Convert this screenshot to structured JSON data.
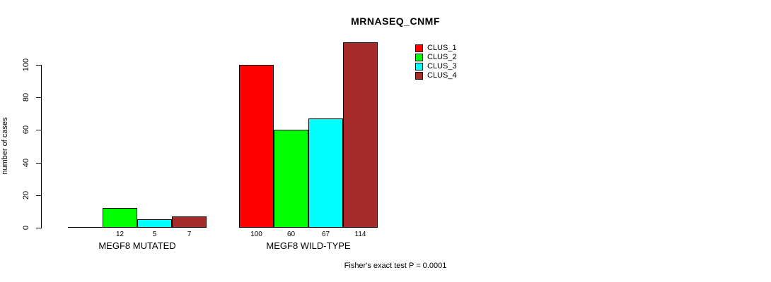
{
  "chart_data": {
    "type": "bar",
    "title": "MRNASEQ_CNMF",
    "ylabel": "number of cases",
    "xlabel": "",
    "categories": [
      "MEGF8 MUTATED",
      "MEGF8 WILD-TYPE"
    ],
    "series": [
      {
        "name": "CLUS_1",
        "color": "#ff0000",
        "values": [
          0,
          100
        ]
      },
      {
        "name": "CLUS_2",
        "color": "#00ff00",
        "values": [
          12,
          60
        ]
      },
      {
        "name": "CLUS_3",
        "color": "#00ffff",
        "values": [
          5,
          67
        ]
      },
      {
        "name": "CLUS_4",
        "color": "#a52a2a",
        "values": [
          7,
          114
        ]
      }
    ],
    "bar_value_labels": [
      [
        "",
        "12",
        "5",
        "7"
      ],
      [
        "100",
        "60",
        "67",
        "114"
      ]
    ],
    "yticks": [
      0,
      20,
      40,
      60,
      80,
      100
    ],
    "ylim": [
      0,
      100
    ],
    "grid": false,
    "legend_position": "top-right",
    "axis_color": "#000000",
    "background_color": "#ffffff",
    "annotation": "Fisher's exact test P = 0.0001"
  }
}
